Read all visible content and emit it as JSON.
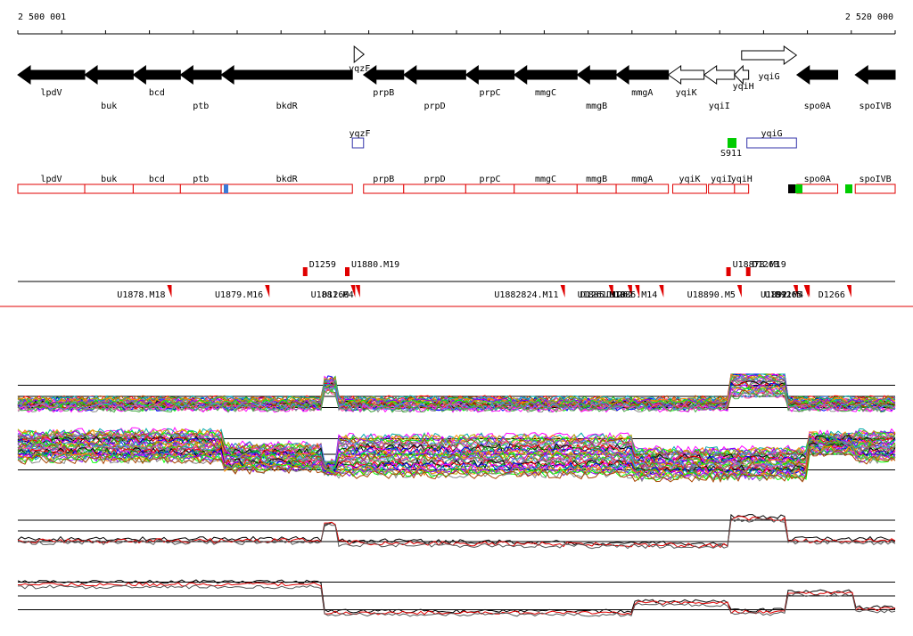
{
  "coords": {
    "start_label": "2 500 001",
    "end_label": "2 520 000",
    "start": 2500001,
    "end": 2520000
  },
  "genes_top": [
    {
      "name": "lpdV",
      "strand": "-",
      "from": 2500001,
      "to": 2501526,
      "label_row": "below"
    },
    {
      "name": "buk",
      "strand": "-",
      "from": 2501526,
      "to": 2502631,
      "label_row": "below2"
    },
    {
      "name": "bcd",
      "strand": "-",
      "from": 2502631,
      "to": 2503707,
      "label_row": "below"
    },
    {
      "name": "ptb",
      "strand": "-",
      "from": 2503707,
      "to": 2504637,
      "label_row": "below2"
    },
    {
      "name": "bkdR",
      "strand": "-",
      "from": 2504637,
      "to": 2507627,
      "label_row": "below2"
    },
    {
      "name": "yqzF",
      "strand": "+",
      "from": 2507627,
      "to": 2507882,
      "label_row": "inline"
    },
    {
      "name": "prpB",
      "strand": "-",
      "from": 2507882,
      "to": 2508797,
      "label_row": "below"
    },
    {
      "name": "prpD",
      "strand": "-",
      "from": 2508797,
      "to": 2510211,
      "label_row": "below2"
    },
    {
      "name": "prpC",
      "strand": "-",
      "from": 2510211,
      "to": 2511316,
      "label_row": "below"
    },
    {
      "name": "mmgC",
      "strand": "-",
      "from": 2511316,
      "to": 2512750,
      "label_row": "below"
    },
    {
      "name": "mmgB",
      "strand": "-",
      "from": 2512750,
      "to": 2513640,
      "label_row": "below2"
    },
    {
      "name": "mmgA",
      "strand": "-",
      "from": 2513640,
      "to": 2514830,
      "label_row": "below"
    },
    {
      "name": "yqiK",
      "strand": "-",
      "from": 2514830,
      "to": 2515644,
      "label_row": "below",
      "open": true
    },
    {
      "name": "yqiI",
      "strand": "-",
      "from": 2515644,
      "to": 2516338,
      "label_row": "below2",
      "open": true
    },
    {
      "name": "yqiH",
      "strand": "-",
      "from": 2516338,
      "to": 2516660,
      "label_row": "inline",
      "open": true
    },
    {
      "name": "yqiG",
      "strand": "+",
      "from": 2516500,
      "to": 2517750,
      "label_row": "below",
      "open": true,
      "raised": true
    },
    {
      "name": "spo0A",
      "strand": "-",
      "from": 2517760,
      "to": 2518690,
      "label_row": "below2"
    },
    {
      "name": "spoIVB",
      "strand": "-",
      "from": 2519090,
      "to": 2520000,
      "label_row": "below2"
    }
  ],
  "mid_features": [
    {
      "name": "yqzF",
      "from": 2507627,
      "to": 2507882,
      "color": "#3333aa"
    },
    {
      "name": "yqiG",
      "from": 2516620,
      "to": 2517750,
      "color": "#3333aa"
    }
  ],
  "mid_marker": {
    "name": "S911",
    "color": "#00cc00"
  },
  "annot_row": [
    {
      "name": "lpdV",
      "from": 2500001,
      "to": 2501526
    },
    {
      "name": "buk",
      "from": 2501526,
      "to": 2502631
    },
    {
      "name": "bcd",
      "from": 2502631,
      "to": 2503707
    },
    {
      "name": "ptb",
      "from": 2503707,
      "to": 2504637
    },
    {
      "name": "bkdR",
      "from": 2504637,
      "to": 2507627
    },
    {
      "name": "prpB",
      "from": 2507882,
      "to": 2508797
    },
    {
      "name": "prpD",
      "from": 2508797,
      "to": 2510211
    },
    {
      "name": "prpC",
      "from": 2510211,
      "to": 2511316
    },
    {
      "name": "mmgC",
      "from": 2511316,
      "to": 2512750
    },
    {
      "name": "mmgB",
      "from": 2512750,
      "to": 2513640
    },
    {
      "name": "mmgA",
      "from": 2513640,
      "to": 2514830
    },
    {
      "name": "yqiK",
      "from": 2514930,
      "to": 2515700
    },
    {
      "name": "yqiI",
      "from": 2515744,
      "to": 2516338
    },
    {
      "name": "yqiH",
      "from": 2516338,
      "to": 2516660
    },
    {
      "name": "spo0A",
      "from": 2517760,
      "to": 2518690
    },
    {
      "name": "spoIVB",
      "from": 2519090,
      "to": 2520000
    }
  ],
  "annot_colors": {
    "border": "#e00000",
    "blue": "#3a7ad8",
    "green": "#00cc00",
    "black": "#000000"
  },
  "segment_labels_above": [
    {
      "text": "U1880.M19",
      "pos": 2507460
    },
    {
      "text": "D1259",
      "pos": 2506500
    },
    {
      "text": "U18878.M19",
      "pos": 2516150
    },
    {
      "text": "D1263",
      "pos": 2516600
    }
  ],
  "segment_labels_below": [
    {
      "text": "U1878.M18",
      "pos": 2503405
    },
    {
      "text": "U1879.M16",
      "pos": 2505635
    },
    {
      "text": "D1260",
      "pos": 2507590
    },
    {
      "text": "U1881.M4",
      "pos": 2507700
    },
    {
      "text": "D1261",
      "pos": 2513470
    },
    {
      "text": "U1882824.M11",
      "pos": 2512370
    },
    {
      "text": "U1885.M10",
      "pos": 2513900
    },
    {
      "text": "D1262",
      "pos": 2514070
    },
    {
      "text": "U1886.M14",
      "pos": 2514620
    },
    {
      "text": "U18890.M5",
      "pos": 2516400
    },
    {
      "text": "U1891",
      "pos": 2517680
    },
    {
      "text": "D1265",
      "pos": 2517920
    },
    {
      "text": "U1892.M4",
      "pos": 2517950
    },
    {
      "text": "D1266",
      "pos": 2518900
    }
  ],
  "tracks": {
    "colors": [
      "#ff0000",
      "#00aa00",
      "#0000ff",
      "#ff00ff",
      "#00aaaa",
      "#aaaa00",
      "#ff8800",
      "#8800ff",
      "#00ff00",
      "#888888",
      "#aa4400",
      "#4488ff",
      "#ff44aa",
      "#44aa44",
      "#884488",
      "#000000"
    ],
    "series_color_primary": "#000000",
    "series_color_secondary": "#e00000"
  }
}
